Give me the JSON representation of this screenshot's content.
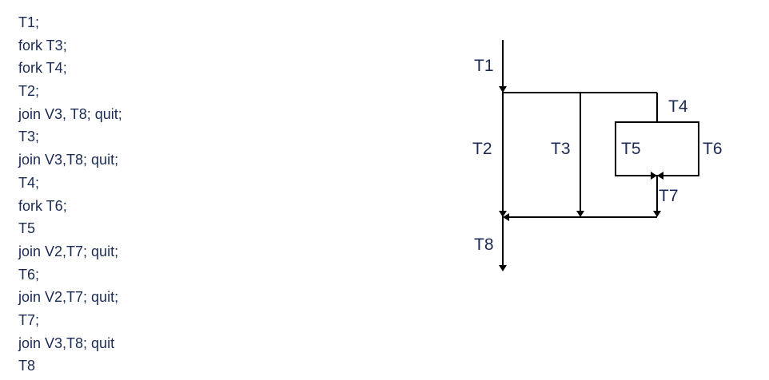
{
  "code": {
    "lines": [
      "T1;",
      "fork T3;",
      "fork T4;",
      "T2;",
      "join V3, T8; quit;",
      "T3;",
      "join V3,T8; quit;",
      "T4;",
      "fork T6;",
      "T5",
      "join V2,T7; quit;",
      "T6;",
      "join V2,T7; quit;",
      "T7;",
      "join V3,T8; quit",
      "T8"
    ]
  },
  "diagram": {
    "labels": {
      "t1": "T1",
      "t2": "T2",
      "t3": "T3",
      "t4": "T4",
      "t5": "T5",
      "t6": "T6",
      "t7": "T7",
      "t8": "T8"
    }
  }
}
